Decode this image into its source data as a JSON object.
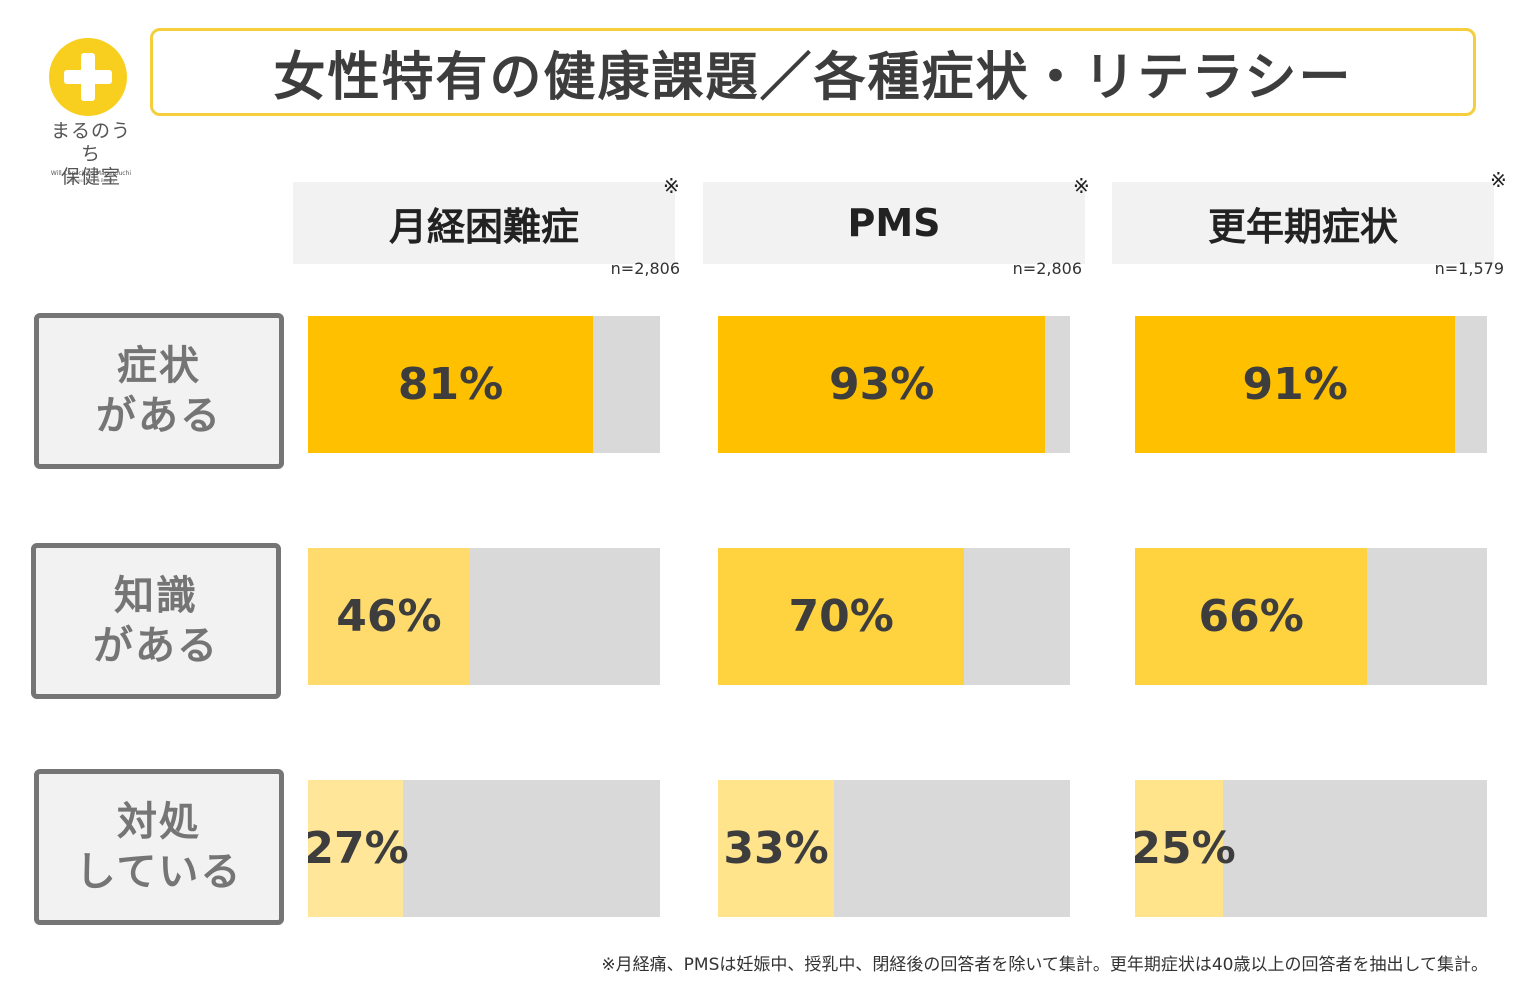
{
  "logo": {
    "name_line1": "まるのうち",
    "name_line2": "保健室",
    "tagline": "Will Conscious Marunouchi",
    "subtagline": "Wellness from & Beauty"
  },
  "title": "女性特有の健康課題／各種症状・リテラシー",
  "colors": {
    "title_border": "#f4cf3b",
    "logo_circle": "#f9cf1f",
    "track": "#d9d9d9",
    "row_symptom": "#ffc000",
    "row_knowledge": "#ffd23f",
    "row_action": "#ffe48c",
    "row_knowledge_light": "#ffdb6e",
    "row_action_light": "#ffe699"
  },
  "chart_data": {
    "type": "bar",
    "categories": [
      "月経困難症",
      "PMS",
      "更年期症状"
    ],
    "asterisk": "※",
    "sample_sizes": [
      "n=2,806",
      "n=2,806",
      "n=1,579"
    ],
    "rows": [
      {
        "label_line1": "症状",
        "label_line2": "がある"
      },
      {
        "label_line1": "知識",
        "label_line2": "がある"
      },
      {
        "label_line1": "対処",
        "label_line2": "している"
      }
    ],
    "series": [
      {
        "name": "症状がある",
        "values": [
          81,
          93,
          91
        ],
        "labels": [
          "81%",
          "93%",
          "91%"
        ]
      },
      {
        "name": "知識がある",
        "values": [
          46,
          70,
          66
        ],
        "labels": [
          "46%",
          "70%",
          "66%"
        ]
      },
      {
        "name": "対処している",
        "values": [
          27,
          33,
          25
        ],
        "labels": [
          "27%",
          "33%",
          "25%"
        ]
      }
    ],
    "ylim": [
      0,
      100
    ]
  },
  "footnote": "※月経痛、PMSは妊娠中、授乳中、閉経後の回答者を除いて集計。更年期症状は40歳以上の回答者を抽出して集計。"
}
